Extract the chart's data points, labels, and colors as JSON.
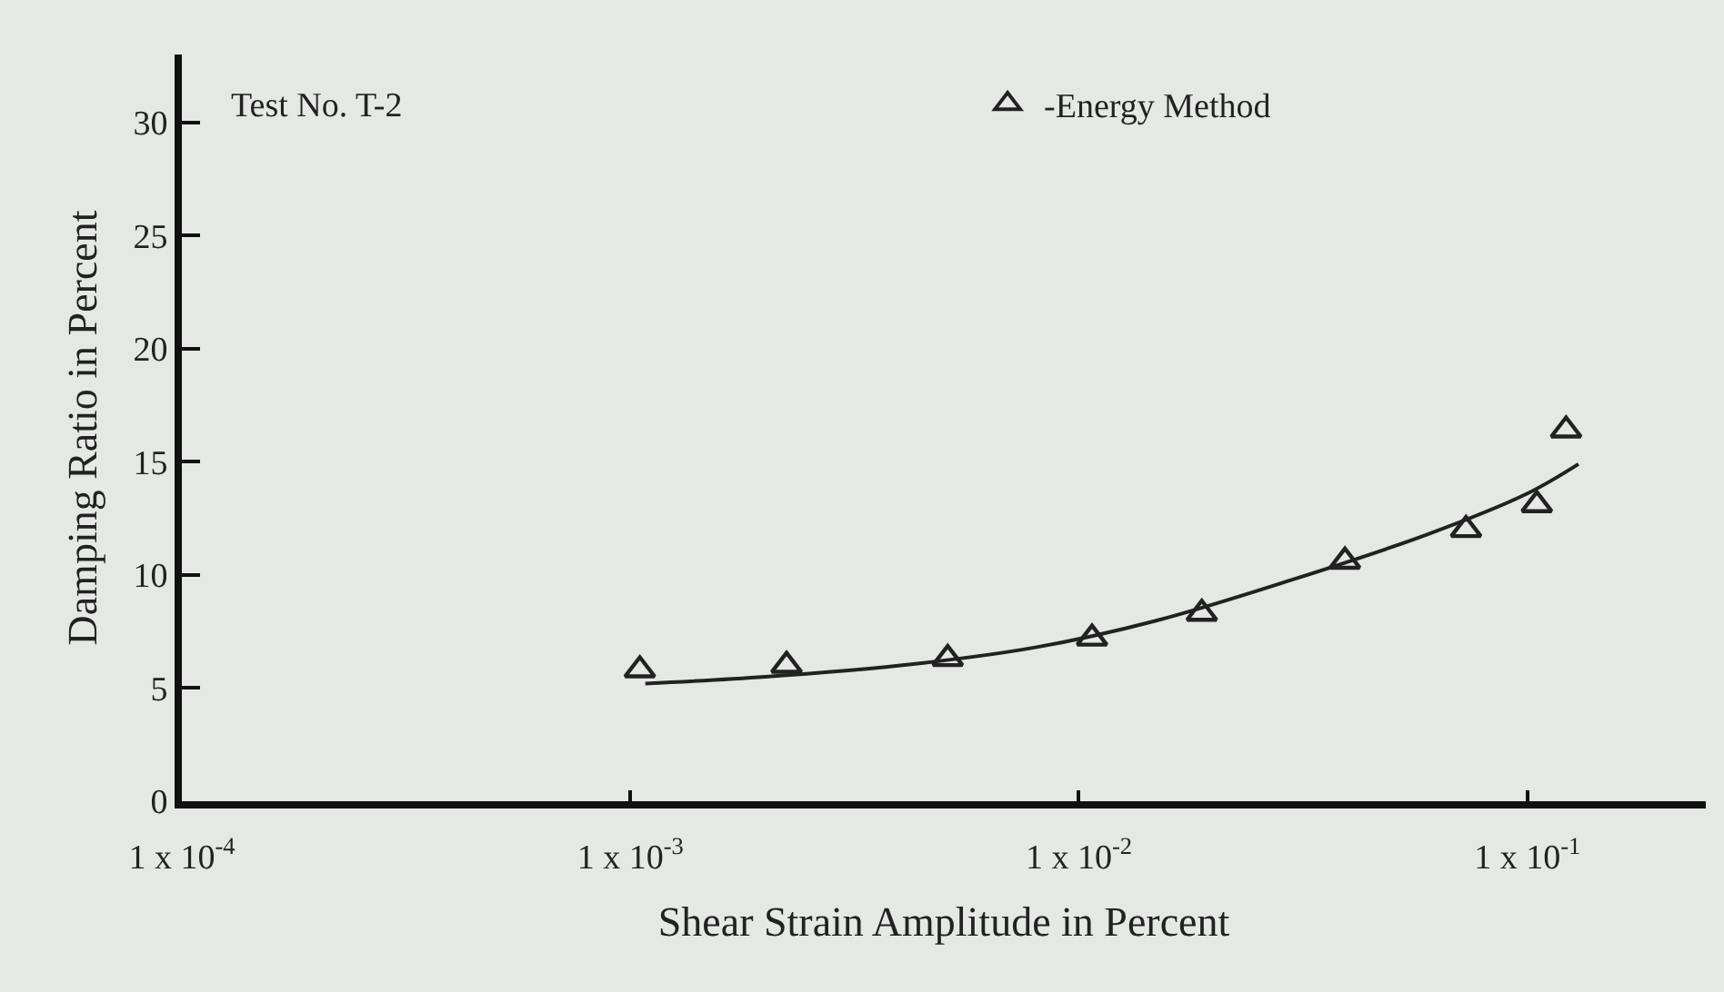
{
  "chart_data": {
    "type": "scatter",
    "xlabel": "Shear Strain Amplitude in Percent",
    "ylabel": "Damping Ratio in Percent",
    "log": "x",
    "xlim": [
      0.0001,
      0.25
    ],
    "xticks": [
      {
        "value": 0.0001,
        "label": "1 x 10$^{-4}$"
      },
      {
        "value": 0.001,
        "label": "1 x 10$^{-3}$"
      },
      {
        "value": 0.01,
        "label": "1 x 10$^{-2}$"
      },
      {
        "value": 0.1,
        "label": "1 x 10$^{-1}$"
      }
    ],
    "ylim": [
      0,
      33
    ],
    "yticks": [
      0,
      5,
      10,
      15,
      20,
      25,
      30
    ],
    "grid": false,
    "legend": "top",
    "marker": "triangle",
    "annotations": [
      "Test No. T-2"
    ],
    "series": [
      {
        "name": "-Energy Method",
        "color": "#222222",
        "x": [
          0.00105,
          0.00223,
          0.0051,
          0.0107,
          0.0188,
          0.0392,
          0.073,
          0.105,
          0.122
        ],
        "values": [
          5.8,
          6.0,
          6.3,
          7.2,
          8.3,
          10.6,
          12.0,
          13.1,
          16.4
        ]
      },
      {
        "type": "line",
        "color": "#222222",
        "marker": "none",
        "line_style": "solid",
        "x": [
          0.00108,
          0.002,
          0.004,
          0.008,
          0.015,
          0.03,
          0.06,
          0.1,
          0.13
        ],
        "values": [
          5.2,
          5.5,
          6.0,
          6.8,
          8.0,
          9.8,
          11.8,
          13.6,
          14.9
        ]
      }
    ]
  }
}
